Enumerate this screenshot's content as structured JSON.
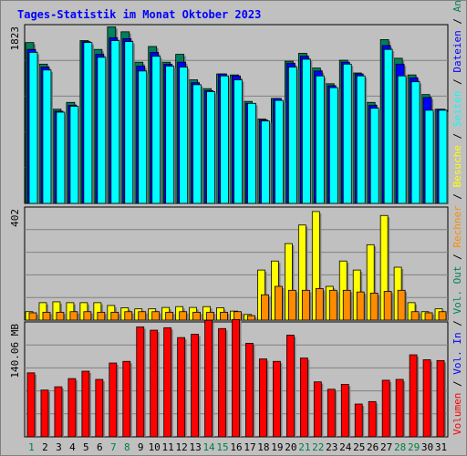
{
  "title": "Tages-Statistik im Monat Oktober 2023",
  "colors": {
    "anfragen": "#00805c",
    "dateien": "#0000ff",
    "seiten": "#00ffff",
    "besuche": "#ffff00",
    "rechner": "#ff8c00",
    "volumen": "#ff0000",
    "weekend_label": "#008040",
    "weekday_label": "#000000",
    "background": "#c0c0c0",
    "gridline": "#808080"
  },
  "chart_data": [
    {
      "type": "bar",
      "panel": "top",
      "y_max_label": "1823",
      "ylim": [
        0,
        1823
      ],
      "categories": [
        "1",
        "2",
        "3",
        "4",
        "5",
        "6",
        "7",
        "8",
        "9",
        "10",
        "11",
        "12",
        "13",
        "14",
        "15",
        "16",
        "17",
        "18",
        "19",
        "20",
        "21",
        "22",
        "23",
        "24",
        "25",
        "26",
        "27",
        "28",
        "29",
        "30",
        "31"
      ],
      "series": [
        {
          "name": "Anfragen",
          "values": [
            1640,
            1420,
            960,
            1030,
            1660,
            1570,
            1800,
            1750,
            1440,
            1600,
            1440,
            1520,
            1260,
            1170,
            1320,
            1310,
            1040,
            860,
            1070,
            1450,
            1530,
            1380,
            1220,
            1460,
            1330,
            1030,
            1670,
            1480,
            1310,
            1110,
            960
          ]
        },
        {
          "name": "Dateien",
          "values": [
            1570,
            1390,
            940,
            1000,
            1650,
            1520,
            1690,
            1680,
            1400,
            1540,
            1420,
            1440,
            1230,
            1150,
            1320,
            1300,
            1020,
            850,
            1070,
            1430,
            1500,
            1350,
            1200,
            1440,
            1320,
            1000,
            1610,
            1420,
            1280,
            1080,
            960
          ]
        },
        {
          "name": "Seiten",
          "values": [
            1540,
            1360,
            930,
            990,
            1640,
            1490,
            1660,
            1650,
            1350,
            1500,
            1400,
            1390,
            1210,
            1140,
            1300,
            1260,
            1020,
            840,
            1050,
            1390,
            1470,
            1300,
            1180,
            1420,
            1300,
            970,
            1570,
            1300,
            1240,
            950,
            950
          ]
        }
      ],
      "legend": [
        "Anfragen",
        "Dateien",
        "Seiten"
      ]
    },
    {
      "type": "bar",
      "panel": "middle",
      "y_max_label": "402",
      "ylim": [
        0,
        402
      ],
      "categories": [
        "1",
        "2",
        "3",
        "4",
        "5",
        "6",
        "7",
        "8",
        "9",
        "10",
        "11",
        "12",
        "13",
        "14",
        "15",
        "16",
        "17",
        "18",
        "19",
        "20",
        "21",
        "22",
        "23",
        "24",
        "25",
        "26",
        "27",
        "28",
        "29",
        "30",
        "31"
      ],
      "series": [
        {
          "name": "Besuche",
          "values": [
            30,
            62,
            65,
            62,
            62,
            62,
            52,
            44,
            40,
            40,
            45,
            48,
            45,
            48,
            44,
            32,
            20,
            178,
            210,
            272,
            338,
            386,
            120,
            210,
            178,
            268,
            372,
            188,
            62,
            30,
            40
          ]
        },
        {
          "name": "Rechner",
          "values": [
            26,
            28,
            28,
            30,
            30,
            28,
            28,
            30,
            30,
            30,
            28,
            30,
            28,
            28,
            28,
            30,
            16,
            90,
            120,
            106,
            106,
            112,
            106,
            106,
            100,
            96,
            102,
            106,
            30,
            26,
            30
          ]
        }
      ],
      "legend": [
        "Besuche",
        "Rechner"
      ]
    },
    {
      "type": "bar",
      "panel": "bottom",
      "y_max_label": "140.06 MB",
      "ylim": [
        0,
        140.06
      ],
      "categories": [
        "1",
        "2",
        "3",
        "4",
        "5",
        "6",
        "7",
        "8",
        "9",
        "10",
        "11",
        "12",
        "13",
        "14",
        "15",
        "16",
        "17",
        "18",
        "19",
        "20",
        "21",
        "22",
        "23",
        "24",
        "25",
        "26",
        "27",
        "28",
        "29",
        "30",
        "31"
      ],
      "series": [
        {
          "name": "Volumen",
          "values": [
            78,
            57,
            61,
            71,
            80,
            70,
            90,
            92,
            134,
            130,
            133,
            121,
            125,
            142,
            132,
            143,
            114,
            95,
            92,
            124,
            96,
            67,
            58,
            64,
            40,
            43,
            69,
            70,
            100,
            94,
            93
          ]
        }
      ],
      "legend": [
        "Volumen",
        "Vol. In",
        "Vol. Out",
        "Rechner",
        "Besuche",
        "Seiten",
        "Dateien",
        "Anfragen"
      ]
    }
  ],
  "x_axis": {
    "labels": [
      "1",
      "2",
      "3",
      "4",
      "5",
      "6",
      "7",
      "8",
      "9",
      "10",
      "11",
      "12",
      "13",
      "14",
      "15",
      "16",
      "17",
      "18",
      "19",
      "20",
      "21",
      "22",
      "23",
      "24",
      "25",
      "26",
      "27",
      "28",
      "29",
      "30",
      "31"
    ],
    "weekend_days": [
      "1",
      "7",
      "8",
      "14",
      "15",
      "21",
      "22",
      "28",
      "29"
    ]
  },
  "right_legend": [
    {
      "text": "Volumen",
      "color": "#ff0000"
    },
    {
      "text": "Vol. In",
      "color": "#0000ff"
    },
    {
      "text": "Vol. Out",
      "color": "#00805c"
    },
    {
      "text": "Rechner",
      "color": "#ff8c00"
    },
    {
      "text": "Besuche",
      "color": "#ffff00"
    },
    {
      "text": "Seiten",
      "color": "#00ffff"
    },
    {
      "text": "Dateien",
      "color": "#0000ff"
    },
    {
      "text": "Anfragen",
      "color": "#00805c"
    }
  ],
  "separator": " / "
}
